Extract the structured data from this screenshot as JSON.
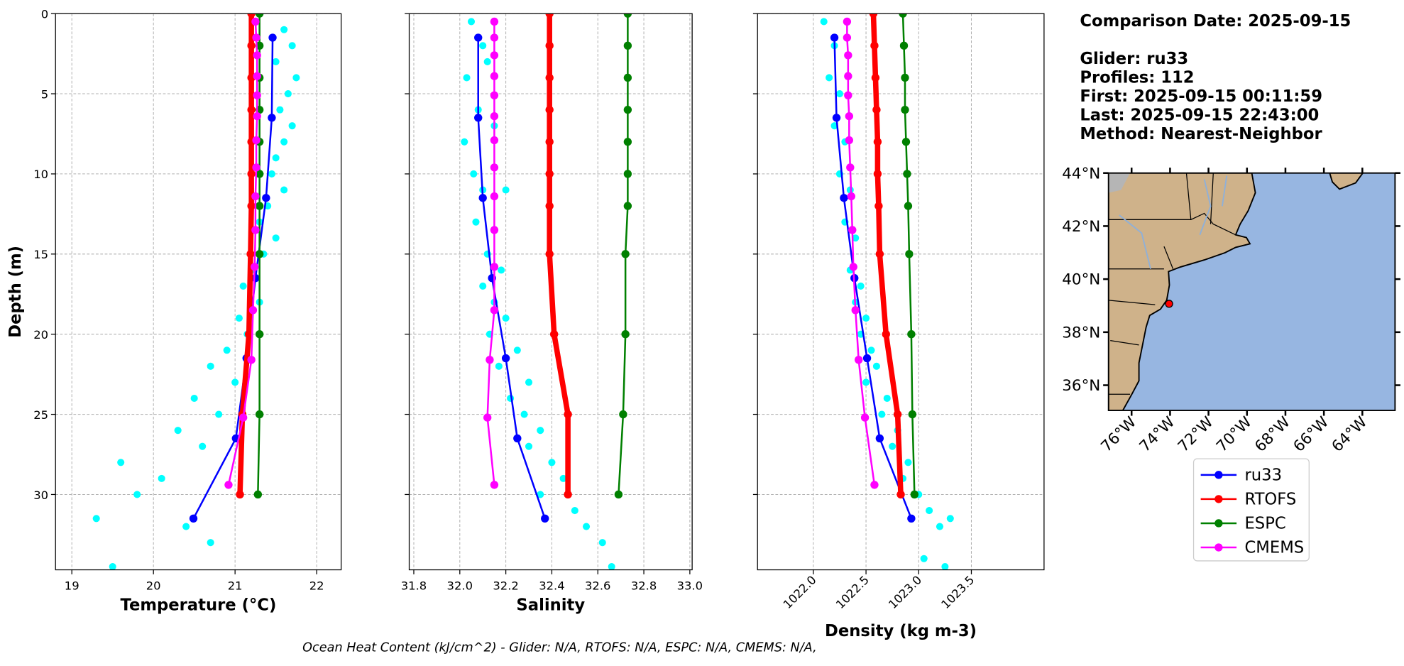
{
  "info": {
    "date": "Comparison Date: 2025-09-15",
    "glider": "Glider: ru33",
    "profiles": "Profiles: 112",
    "first": "First: 2025-09-15 00:11:59",
    "last": "Last: 2025-09-15 22:43:00",
    "method": "Method: Nearest-Neighbor"
  },
  "footer": "Ocean Heat Content (kJ/cm^2) - Glider: N/A,  RTOFS: N/A,  ESPC: N/A,  CMEMS: N/A,",
  "chart_data": [
    {
      "type": "line",
      "xlabel": "Temperature (°C)",
      "ylabel": "Depth (m)",
      "xlim": [
        18.8,
        22.3
      ],
      "ylim": [
        34.7,
        0
      ],
      "xticks": [
        19,
        20,
        21,
        22
      ],
      "yticks": [
        0,
        5,
        10,
        15,
        20,
        25,
        30
      ],
      "grid": true,
      "show_ytick_labels": true,
      "scatter": {
        "color": "#00ffff",
        "x": [
          21.6,
          21.7,
          21.5,
          21.75,
          21.65,
          21.55,
          21.7,
          21.6,
          21.5,
          21.45,
          21.6,
          21.4,
          21.3,
          21.5,
          21.35,
          21.2,
          21.1,
          21.3,
          21.05,
          21.15,
          20.9,
          20.7,
          21.0,
          20.5,
          20.8,
          20.3,
          20.6,
          19.6,
          20.1,
          19.3,
          19.8,
          20.4,
          19.5,
          20.7
        ],
        "y": [
          1,
          2,
          3,
          4,
          5,
          6,
          7,
          8,
          9,
          10,
          11,
          12,
          13,
          14,
          15,
          16,
          17,
          18,
          19,
          20,
          21,
          22,
          23,
          24,
          25,
          26,
          27,
          28,
          29,
          31.5,
          30,
          32,
          34.5,
          33
        ]
      },
      "series": [
        {
          "name": "ru33",
          "color": "#0000ff",
          "x": [
            21.46,
            21.45,
            21.38,
            21.25,
            21.14,
            21.01,
            20.49
          ],
          "y": [
            1.5,
            6.5,
            11.5,
            16.5,
            21.5,
            26.5,
            31.5
          ]
        },
        {
          "name": "RTOFS",
          "color": "#ff0000",
          "x": [
            21.2,
            21.2,
            21.2,
            21.2,
            21.2,
            21.2,
            21.2,
            21.19,
            21.17,
            21.09,
            21.06
          ],
          "y": [
            0,
            2,
            4,
            6,
            8,
            10,
            12,
            15,
            20,
            25,
            30
          ]
        },
        {
          "name": "ESPC",
          "color": "#008000",
          "x": [
            21.3,
            21.3,
            21.3,
            21.3,
            21.3,
            21.3,
            21.3,
            21.3,
            21.3,
            21.3,
            21.28
          ],
          "y": [
            0,
            2,
            4,
            6,
            8,
            10,
            12,
            15,
            20,
            25,
            30
          ]
        },
        {
          "name": "CMEMS",
          "color": "#ff00ff",
          "x": [
            21.25,
            21.26,
            21.27,
            21.27,
            21.27,
            21.27,
            21.26,
            21.26,
            21.25,
            21.25,
            21.24,
            21.22,
            21.2,
            21.1,
            20.92
          ],
          "y": [
            0.5,
            1.5,
            2.6,
            3.9,
            5.1,
            6.4,
            7.9,
            9.6,
            11.4,
            13.5,
            15.8,
            18.5,
            21.6,
            25.2,
            29.4
          ]
        }
      ]
    },
    {
      "type": "line",
      "xlabel": "Salinity",
      "xlim": [
        31.78,
        33.01
      ],
      "ylim": [
        34.7,
        0
      ],
      "xticks": [
        31.8,
        {
          "value": 32,
          "label": "32.0"
        },
        32.2,
        32.4,
        32.6,
        32.8,
        {
          "value": 33,
          "label": "33.0"
        }
      ],
      "yticks": [
        0,
        5,
        10,
        15,
        20,
        25,
        30
      ],
      "grid": true,
      "show_ytick_labels": false,
      "scatter": {
        "color": "#00ffff",
        "x": [
          32.05,
          32.1,
          32.12,
          32.03,
          32.08,
          32.15,
          32.02,
          32.06,
          32.1,
          32.2,
          32.07,
          32.12,
          32.18,
          32.1,
          32.15,
          32.2,
          32.13,
          32.25,
          32.17,
          32.3,
          32.22,
          32.28,
          32.35,
          32.3,
          32.4,
          32.45,
          32.35,
          32.5,
          32.55,
          32.62,
          32.66
        ],
        "y": [
          0.5,
          2,
          3,
          4,
          6,
          7,
          8,
          10,
          11,
          11,
          13,
          15,
          16,
          17,
          18,
          19,
          20,
          21,
          22,
          23,
          24,
          25,
          26,
          27,
          28,
          29,
          30,
          31,
          32,
          33,
          34.5
        ]
      },
      "series": [
        {
          "color": "#0000ff",
          "x": [
            32.08,
            32.08,
            32.1,
            32.14,
            32.2,
            32.25,
            32.37
          ],
          "y": [
            1.5,
            6.5,
            11.5,
            16.5,
            21.5,
            26.5,
            31.5
          ]
        },
        {
          "color": "#ff0000",
          "x": [
            32.39,
            32.39,
            32.39,
            32.39,
            32.39,
            32.39,
            32.39,
            32.39,
            32.41,
            32.47,
            32.47
          ],
          "y": [
            0,
            2,
            4,
            6,
            8,
            10,
            12,
            15,
            20,
            25,
            30
          ]
        },
        {
          "color": "#008000",
          "x": [
            32.73,
            32.73,
            32.73,
            32.73,
            32.73,
            32.73,
            32.73,
            32.72,
            32.72,
            32.71,
            32.69
          ],
          "y": [
            0,
            2,
            4,
            6,
            8,
            10,
            12,
            15,
            20,
            25,
            30
          ]
        },
        {
          "color": "#ff00ff",
          "x": [
            32.15,
            32.15,
            32.15,
            32.15,
            32.15,
            32.15,
            32.15,
            32.15,
            32.15,
            32.15,
            32.15,
            32.15,
            32.13,
            32.12,
            32.15
          ],
          "y": [
            0.5,
            1.5,
            2.6,
            3.9,
            5.1,
            6.4,
            7.9,
            9.6,
            11.4,
            13.5,
            15.8,
            18.5,
            21.6,
            25.2,
            29.4
          ]
        }
      ]
    },
    {
      "type": "line",
      "xlabel": "Density (kg m-3)",
      "xlim": [
        1021.47,
        1024.19
      ],
      "ylim": [
        34.7,
        0
      ],
      "xtick_rotation": 45,
      "xticks": [
        {
          "value": 1022,
          "label": "1022.0"
        },
        1022.5,
        {
          "value": 1023,
          "label": "1023.0"
        },
        1023.5
      ],
      "yticks": [
        0,
        5,
        10,
        15,
        20,
        25,
        30
      ],
      "grid": true,
      "show_ytick_labels": false,
      "scatter": {
        "color": "#00ffff",
        "x": [
          1022.1,
          1022.2,
          1022.15,
          1022.25,
          1022.2,
          1022.3,
          1022.25,
          1022.35,
          1022.3,
          1022.4,
          1022.35,
          1022.45,
          1022.4,
          1022.5,
          1022.45,
          1022.55,
          1022.6,
          1022.5,
          1022.7,
          1022.65,
          1022.8,
          1022.75,
          1022.9,
          1022.85,
          1023.0,
          1023.1,
          1023.2,
          1023.3,
          1023.05,
          1023.25
        ],
        "y": [
          0.5,
          2,
          4,
          5,
          7,
          8,
          10,
          11,
          13,
          14,
          16,
          17,
          18,
          19,
          20,
          21,
          22,
          23,
          24,
          25,
          26,
          27,
          28,
          29,
          30,
          31,
          32,
          31.5,
          34,
          34.5
        ]
      },
      "series": [
        {
          "color": "#0000ff",
          "x": [
            1022.2,
            1022.22,
            1022.29,
            1022.39,
            1022.51,
            1022.63,
            1022.93
          ],
          "y": [
            1.5,
            6.5,
            11.5,
            16.5,
            21.5,
            26.5,
            31.5
          ]
        },
        {
          "color": "#ff0000",
          "x": [
            1022.57,
            1022.58,
            1022.59,
            1022.6,
            1022.61,
            1022.61,
            1022.62,
            1022.63,
            1022.69,
            1022.8,
            1022.83
          ],
          "y": [
            0,
            2,
            4,
            6,
            8,
            10,
            12,
            15,
            20,
            25,
            30
          ]
        },
        {
          "color": "#008000",
          "x": [
            1022.85,
            1022.86,
            1022.87,
            1022.87,
            1022.88,
            1022.89,
            1022.9,
            1022.91,
            1022.93,
            1022.94,
            1022.96
          ],
          "y": [
            0,
            2,
            4,
            6,
            8,
            10,
            12,
            15,
            20,
            25,
            30
          ]
        },
        {
          "color": "#ff00ff",
          "x": [
            1022.32,
            1022.32,
            1022.33,
            1022.33,
            1022.33,
            1022.34,
            1022.34,
            1022.35,
            1022.36,
            1022.37,
            1022.38,
            1022.4,
            1022.43,
            1022.49,
            1022.58
          ],
          "y": [
            0.5,
            1.5,
            2.6,
            3.9,
            5.1,
            6.4,
            7.9,
            9.6,
            11.4,
            13.5,
            15.8,
            18.5,
            21.6,
            25.2,
            29.4
          ]
        }
      ]
    },
    {
      "type": "map",
      "xlim": [
        -77.2,
        -62.3
      ],
      "ylim": [
        35.05,
        44
      ],
      "xtick_rotation": 45,
      "xticks": [
        {
          "value": -76,
          "label": "76°W"
        },
        {
          "value": -74,
          "label": "74°W"
        },
        {
          "value": -72,
          "label": "72°W"
        },
        {
          "value": -70,
          "label": "70°W"
        },
        {
          "value": -68,
          "label": "68°W"
        },
        {
          "value": -66,
          "label": "66°W"
        },
        {
          "value": -64,
          "label": "64°W"
        }
      ],
      "yticks": [
        {
          "value": 44,
          "label": "44°N"
        },
        {
          "value": 42,
          "label": "42°N"
        },
        {
          "value": 40,
          "label": "40°N"
        },
        {
          "value": 38,
          "label": "38°N"
        },
        {
          "value": 36,
          "label": "36°N"
        }
      ],
      "ocean_color": "#97b6e1",
      "land_color": "#cfb28a",
      "marker": {
        "lon": -74.05,
        "lat": 39.07,
        "color": "#ff0000"
      }
    }
  ]
}
